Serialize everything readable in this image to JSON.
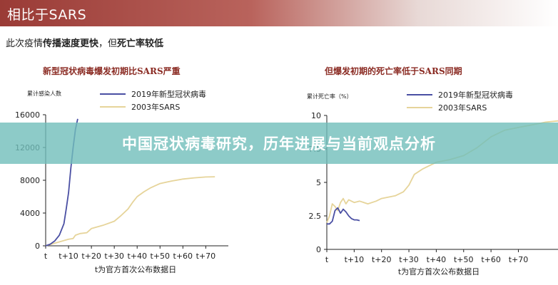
{
  "header": {
    "title": "相比于SARS"
  },
  "subtitle": {
    "prefix": "此次疫情",
    "bold1": "传播速度更快",
    "middle": "，但",
    "bold2": "死亡率较低"
  },
  "banner": {
    "text": "中国冠状病毒研究，历年进展与当前观点分析"
  },
  "colors": {
    "covid": "#4a4fa3",
    "sars": "#e6d49a",
    "axis": "#222222",
    "title_red": "#8b2c24"
  },
  "chart_data": [
    {
      "type": "line",
      "title": "新型冠状病毒爆发初期比SARS严重",
      "ylabel": "累计感染人数",
      "xlabel": "t为官方首次公布数据日",
      "ylim": [
        0,
        16000
      ],
      "yticks": [
        "0",
        "4000",
        "8000",
        "12000",
        "16000"
      ],
      "xlim": [
        0,
        78
      ],
      "xticks": [
        {
          "x": 0,
          "label": "t"
        },
        {
          "x": 10,
          "label": "t+10"
        },
        {
          "x": 20,
          "label": "t+20"
        },
        {
          "x": 30,
          "label": "t+30"
        },
        {
          "x": 40,
          "label": "t+40"
        },
        {
          "x": 50,
          "label": "t+50"
        },
        {
          "x": 60,
          "label": "t+60"
        },
        {
          "x": 70,
          "label": "t+70"
        }
      ],
      "legend": "top-left",
      "series": [
        {
          "name": "2019年新型冠状病毒",
          "color": "#4a4fa3",
          "points": [
            [
              0,
              0
            ],
            [
              2,
              200
            ],
            [
              4,
              600
            ],
            [
              6,
              1300
            ],
            [
              8,
              2700
            ],
            [
              9,
              4500
            ],
            [
              10,
              6500
            ],
            [
              11,
              9500
            ],
            [
              12,
              12000
            ],
            [
              13,
              14200
            ],
            [
              14,
              15500
            ]
          ]
        },
        {
          "name": "2003年SARS",
          "color": "#e6d49a",
          "points": [
            [
              0,
              0
            ],
            [
              5,
              400
            ],
            [
              10,
              800
            ],
            [
              12,
              900
            ],
            [
              13,
              1300
            ],
            [
              15,
              1500
            ],
            [
              18,
              1600
            ],
            [
              20,
              2100
            ],
            [
              25,
              2500
            ],
            [
              30,
              3000
            ],
            [
              33,
              3700
            ],
            [
              36,
              4500
            ],
            [
              38,
              5300
            ],
            [
              40,
              6000
            ],
            [
              43,
              6600
            ],
            [
              46,
              7100
            ],
            [
              50,
              7600
            ],
            [
              55,
              7900
            ],
            [
              60,
              8150
            ],
            [
              65,
              8300
            ],
            [
              70,
              8400
            ],
            [
              74,
              8430
            ]
          ]
        }
      ]
    },
    {
      "type": "line",
      "title": "但爆发初期的死亡率低于SARS同期",
      "ylabel": "累计死亡率（%）",
      "xlabel": "t为官方首次公布数据日",
      "ylim": [
        0,
        10
      ],
      "yticks": [
        "0",
        "2.5",
        "5",
        "7.5",
        "10"
      ],
      "xlim": [
        0,
        85
      ],
      "xticks": [
        {
          "x": 0,
          "label": "t"
        },
        {
          "x": 10,
          "label": "t+10"
        },
        {
          "x": 20,
          "label": "t+20"
        },
        {
          "x": 30,
          "label": "t+30"
        },
        {
          "x": 40,
          "label": "t+40"
        },
        {
          "x": 50,
          "label": "t+50"
        },
        {
          "x": 60,
          "label": "t+60"
        },
        {
          "x": 70,
          "label": "t+70"
        }
      ],
      "legend": "top-left",
      "series": [
        {
          "name": "2019年新型冠状病毒",
          "color": "#4a4fa3",
          "points": [
            [
              0,
              1.9
            ],
            [
              1,
              1.9
            ],
            [
              2,
              2.1
            ],
            [
              3,
              2.9
            ],
            [
              4,
              3.1
            ],
            [
              5,
              2.7
            ],
            [
              6,
              3.0
            ],
            [
              7,
              2.8
            ],
            [
              8,
              2.5
            ],
            [
              9,
              2.3
            ],
            [
              10,
              2.2
            ],
            [
              11,
              2.2
            ],
            [
              12,
              2.15
            ]
          ]
        },
        {
          "name": "2003年SARS",
          "color": "#e6d49a",
          "points": [
            [
              0,
              2.0
            ],
            [
              1,
              2.5
            ],
            [
              2,
              3.4
            ],
            [
              3,
              3.2
            ],
            [
              4,
              2.9
            ],
            [
              5,
              3.5
            ],
            [
              6,
              3.8
            ],
            [
              7,
              3.4
            ],
            [
              8,
              3.7
            ],
            [
              10,
              3.5
            ],
            [
              12,
              3.6
            ],
            [
              15,
              3.4
            ],
            [
              18,
              3.6
            ],
            [
              20,
              3.8
            ],
            [
              25,
              4.0
            ],
            [
              28,
              4.3
            ],
            [
              30,
              4.8
            ],
            [
              32,
              5.6
            ],
            [
              35,
              6.0
            ],
            [
              38,
              6.3
            ],
            [
              40,
              6.5
            ],
            [
              45,
              6.7
            ],
            [
              50,
              7.0
            ],
            [
              55,
              7.6
            ],
            [
              60,
              8.4
            ],
            [
              65,
              8.9
            ],
            [
              70,
              9.1
            ],
            [
              75,
              9.3
            ],
            [
              80,
              9.5
            ],
            [
              85,
              9.6
            ]
          ]
        }
      ]
    }
  ]
}
